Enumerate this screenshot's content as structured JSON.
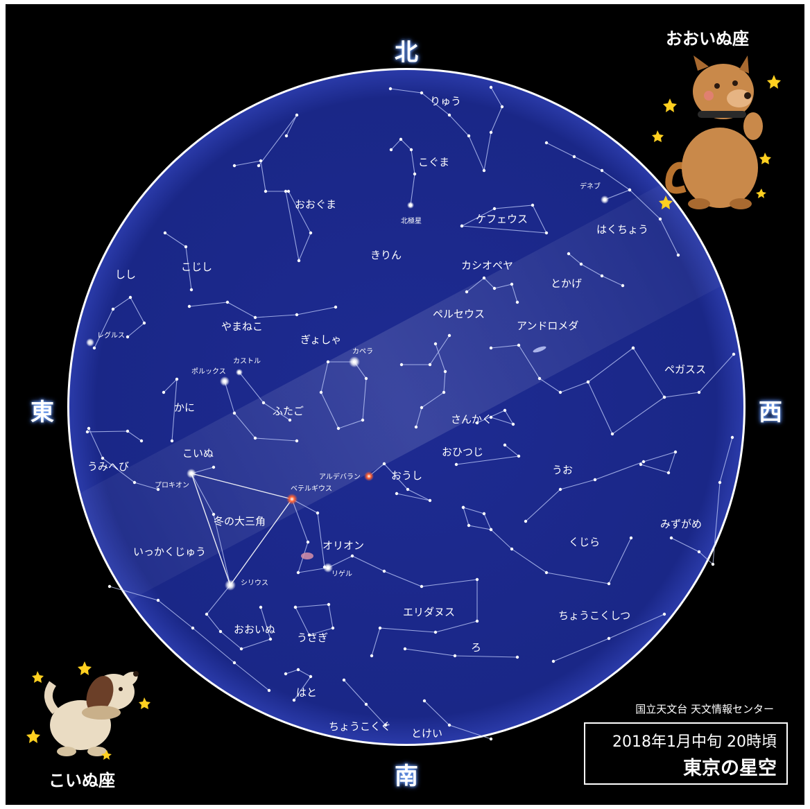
{
  "directions": {
    "north": "北",
    "south": "南",
    "east": "東",
    "west": "西"
  },
  "corner_labels": {
    "top_right": "おおいぬ座",
    "bottom_left": "こいぬ座"
  },
  "credit": "国立天文台 天文情報センター",
  "date_line": "2018年1月中旬 20時頃",
  "title": "東京の星空",
  "constellations": [
    "りゅう",
    "こぐま",
    "おおぐま",
    "ケフェウス",
    "こじし",
    "きりん",
    "カシオペヤ",
    "しし",
    "とかげ",
    "はくちょう",
    "やまねこ",
    "ぎょしゃ",
    "ペルセウス",
    "アンドロメダ",
    "ペガスス",
    "ふたご",
    "かに",
    "さんかく",
    "おひつじ",
    "こいぬ",
    "うみへび",
    "おうし",
    "うお",
    "冬の大三角",
    "オリオン",
    "いっかくじゅう",
    "みずがめ",
    "くじら",
    "エリダヌス",
    "ちょうこくしつ",
    "おおいぬ",
    "うさぎ",
    "ろ",
    "はと",
    "ちょうこくぐ",
    "とけい"
  ],
  "stars": [
    "北極星",
    "デネブ",
    "レグルス",
    "カペラ",
    "ポルックス",
    "カストル",
    "プロキオン",
    "アルデバラン",
    "ベテルギウス",
    "リゲル",
    "シリウス"
  ],
  "colors": {
    "sky_disc": "#1c2a8c",
    "background": "#000000",
    "constellation_lines": "#c6d2ff",
    "star_white": "#ffffff",
    "star_red": "#ff5a30"
  }
}
